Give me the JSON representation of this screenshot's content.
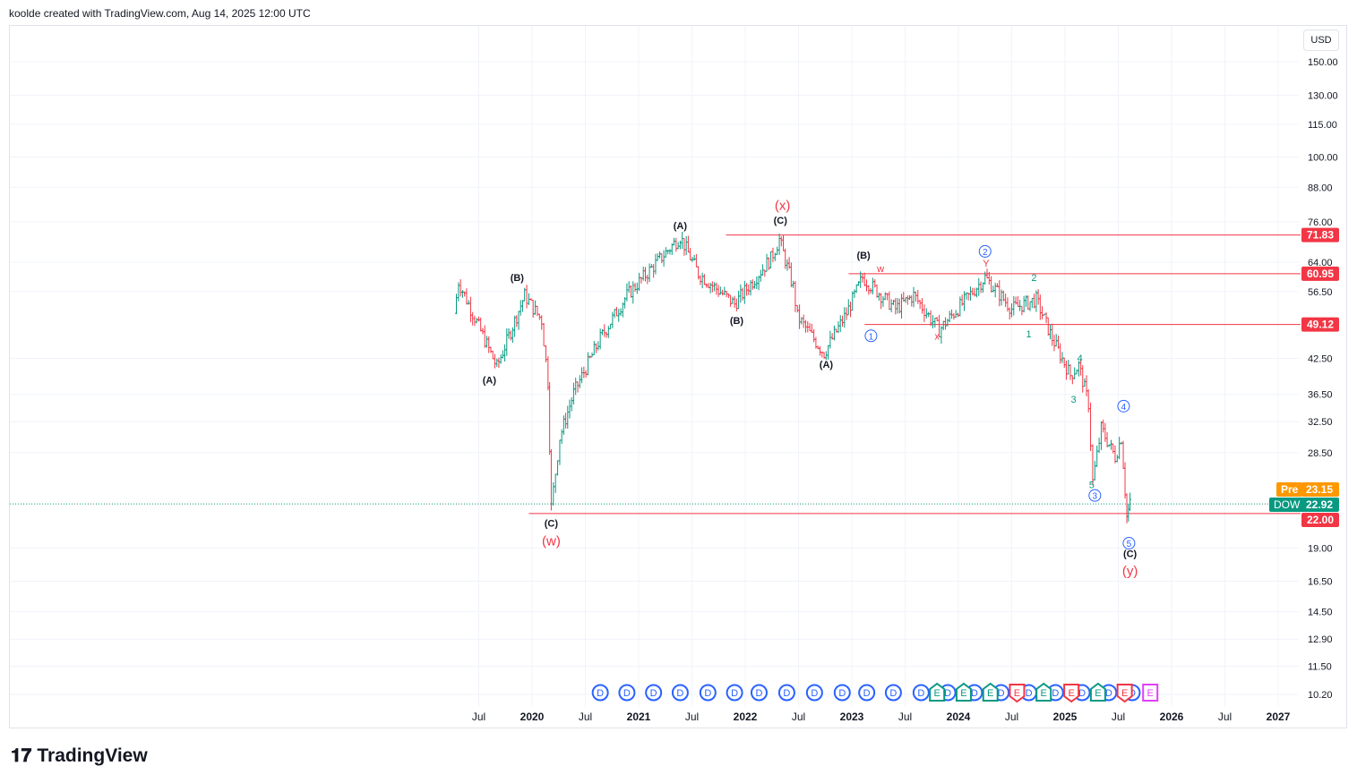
{
  "header": "koolde created with TradingView.com, Aug 14, 2025 12:00 UTC",
  "currency": "USD",
  "brand": "TradingView",
  "colors": {
    "up": "#089981",
    "down": "#F23645",
    "blue": "#2962FF",
    "pre": "#FF9800",
    "magenta": "#E040FB",
    "black": "#131722"
  },
  "chart_data": {
    "type": "ohlc-bar",
    "symbol": "DOW",
    "scale": "log",
    "price_ticks": [
      "150.00",
      "130.00",
      "115.00",
      "100.00",
      "88.00",
      "76.00",
      "64.00",
      "56.50",
      "42.50",
      "36.50",
      "32.50",
      "28.50",
      "19.00",
      "16.50",
      "14.50",
      "12.90",
      "11.50",
      "10.20"
    ],
    "time_ticks": [
      {
        "t": "Jul",
        "d": 2019.5
      },
      {
        "t": "2020",
        "d": 2020,
        "b": 1
      },
      {
        "t": "Jul",
        "d": 2020.5
      },
      {
        "t": "2021",
        "d": 2021,
        "b": 1
      },
      {
        "t": "Jul",
        "d": 2021.5
      },
      {
        "t": "2022",
        "d": 2022,
        "b": 1
      },
      {
        "t": "Jul",
        "d": 2022.5
      },
      {
        "t": "2023",
        "d": 2023,
        "b": 1
      },
      {
        "t": "Jul",
        "d": 2023.5
      },
      {
        "t": "2024",
        "d": 2024,
        "b": 1
      },
      {
        "t": "Jul",
        "d": 2024.5
      },
      {
        "t": "2025",
        "d": 2025,
        "b": 1
      },
      {
        "t": "Jul",
        "d": 2025.5
      },
      {
        "t": "2026",
        "d": 2026,
        "b": 1
      },
      {
        "t": "Jul",
        "d": 2026.5
      },
      {
        "t": "2027",
        "d": 2027,
        "b": 1
      }
    ],
    "price_path": [
      [
        2019.27,
        51.5
      ],
      [
        2019.31,
        58.9
      ],
      [
        2019.67,
        41
      ],
      [
        2019.93,
        55.6
      ],
      [
        2020.09,
        50
      ],
      [
        2020.15,
        38.5
      ],
      [
        2020.18,
        22.6
      ],
      [
        2020.26,
        30.4
      ],
      [
        2020.39,
        36.7
      ],
      [
        2020.64,
        46.3
      ],
      [
        2020.89,
        55.6
      ],
      [
        2021.39,
        71.3
      ],
      [
        2021.56,
        61
      ],
      [
        2021.9,
        53.6
      ],
      [
        2022.24,
        65
      ],
      [
        2022.32,
        70.5
      ],
      [
        2022.45,
        57.5
      ],
      [
        2022.49,
        50.8
      ],
      [
        2022.74,
        43.5
      ],
      [
        2022.95,
        51.5
      ],
      [
        2023.1,
        60
      ],
      [
        2023.41,
        52.5
      ],
      [
        2023.58,
        55.6
      ],
      [
        2023.82,
        48
      ],
      [
        2024.25,
        60
      ],
      [
        2024.5,
        52.5
      ],
      [
        2024.73,
        54.6
      ],
      [
        2024.88,
        46.3
      ],
      [
        2025.05,
        39.6
      ],
      [
        2025.13,
        41.3
      ],
      [
        2025.22,
        35.1
      ],
      [
        2025.26,
        25.2
      ],
      [
        2025.34,
        31.6
      ],
      [
        2025.47,
        28
      ],
      [
        2025.53,
        30.4
      ],
      [
        2025.58,
        21.7
      ],
      [
        2025.61,
        22.9
      ]
    ],
    "levels": [
      {
        "price": 71.83,
        "from": 2021.82,
        "label": "71.83"
      },
      {
        "price": 60.95,
        "from": 2022.97,
        "label": "60.95"
      },
      {
        "price": 49.12,
        "from": 2023.12,
        "label": "49.12"
      },
      {
        "price": 22.0,
        "from": 2019.97,
        "label": "22.00"
      }
    ],
    "price_tags": {
      "pre_label": "Pre",
      "pre": "23.15",
      "sym_label": "DOW",
      "last": "22.92"
    },
    "annotations": [
      {
        "t": "(A)",
        "d": 2019.6,
        "p": 38.2,
        "c": "black"
      },
      {
        "t": "(B)",
        "d": 2019.86,
        "p": 59.1,
        "c": "black"
      },
      {
        "t": "(C)",
        "d": 2020.18,
        "p": 20.8,
        "c": "black"
      },
      {
        "t": "(w)",
        "d": 2020.18,
        "p": 19.2,
        "c": "red",
        "big": 1
      },
      {
        "t": "(A)",
        "d": 2021.39,
        "p": 73.7,
        "c": "black"
      },
      {
        "t": "(B)",
        "d": 2021.92,
        "p": 49.2,
        "c": "black"
      },
      {
        "t": "(C)",
        "d": 2022.33,
        "p": 75.3,
        "c": "black"
      },
      {
        "t": "(x)",
        "d": 2022.35,
        "p": 80,
        "c": "red",
        "big": 1
      },
      {
        "t": "(A)",
        "d": 2022.76,
        "p": 40.9,
        "c": "black"
      },
      {
        "t": "(B)",
        "d": 2023.11,
        "p": 65,
        "c": "black"
      },
      {
        "t": "w",
        "d": 2023.27,
        "p": 61.4,
        "c": "red"
      },
      {
        "t": "1",
        "d": 2023.18,
        "p": 46.1,
        "c": "blue",
        "circ": 1
      },
      {
        "t": "x",
        "d": 2023.8,
        "p": 46.1,
        "c": "red"
      },
      {
        "t": "2",
        "d": 2024.25,
        "p": 66,
        "c": "blue",
        "circ": 1
      },
      {
        "t": "Y",
        "d": 2024.26,
        "p": 62.8,
        "c": "red"
      },
      {
        "t": "2",
        "d": 2024.71,
        "p": 59.1,
        "c": "up"
      },
      {
        "t": "1",
        "d": 2024.66,
        "p": 46.5,
        "c": "up"
      },
      {
        "t": "4",
        "d": 2025.14,
        "p": 42,
        "c": "up"
      },
      {
        "t": "3",
        "d": 2025.08,
        "p": 35.2,
        "c": "up"
      },
      {
        "t": "4",
        "d": 2025.55,
        "p": 34.2,
        "c": "blue",
        "circ": 1
      },
      {
        "t": "5",
        "d": 2025.25,
        "p": 24.5,
        "c": "up"
      },
      {
        "t": "3",
        "d": 2025.28,
        "p": 23.4,
        "c": "blue",
        "circ": 1
      },
      {
        "t": "5",
        "d": 2025.6,
        "p": 19.1,
        "c": "blue",
        "circ": 1
      },
      {
        "t": "(C)",
        "d": 2025.61,
        "p": 18.3,
        "c": "black"
      },
      {
        "t": "(y)",
        "d": 2025.61,
        "p": 16.9,
        "c": "red",
        "big": 1
      }
    ],
    "events": [
      [
        "D",
        2020.64
      ],
      [
        "D",
        2020.89
      ],
      [
        "D",
        2021.14
      ],
      [
        "D",
        2021.39
      ],
      [
        "D",
        2021.65
      ],
      [
        "D",
        2021.9
      ],
      [
        "D",
        2022.13
      ],
      [
        "D",
        2022.39
      ],
      [
        "D",
        2022.65
      ],
      [
        "D",
        2022.91
      ],
      [
        "D",
        2023.14
      ],
      [
        "D",
        2023.39
      ],
      [
        "D",
        2023.65
      ],
      [
        "D",
        2023.9
      ],
      [
        "D",
        2024.15
      ],
      [
        "D",
        2024.4
      ],
      [
        "D",
        2024.66
      ],
      [
        "D",
        2024.91
      ],
      [
        "D",
        2025.16
      ],
      [
        "D",
        2025.41
      ],
      [
        "D",
        2025.63
      ],
      [
        "E+",
        2023.8
      ],
      [
        "E+",
        2024.05
      ],
      [
        "E+",
        2024.3
      ],
      [
        "E-",
        2024.55
      ],
      [
        "E+",
        2024.8
      ],
      [
        "E-",
        2025.06
      ],
      [
        "E+",
        2025.31
      ],
      [
        "E-",
        2025.56
      ],
      [
        "Eu",
        2025.8
      ]
    ]
  }
}
